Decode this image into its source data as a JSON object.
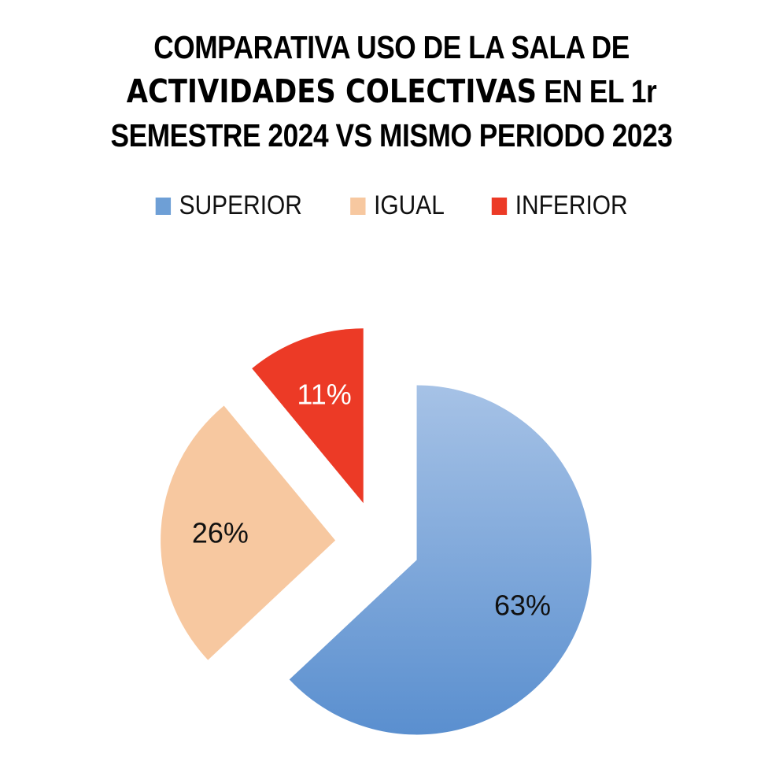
{
  "title": {
    "part1": "COMPARATIVA USO DE LA SALA DE ",
    "part2": "ACTIVIDADES COLECTIVAS",
    "part3": " EN EL 1r SEMESTRE 2024 VS MISMO PERIODO 2023"
  },
  "chart_data": {
    "type": "pie",
    "title": "COMPARATIVA USO DE LA SALA DE ACTIVIDADES COLECTIVAS EN EL 1r SEMESTRE 2024 VS MISMO PERIODO 2023",
    "legend_position": "top",
    "exploded": true,
    "slices": [
      {
        "name": "SUPERIOR",
        "value": 63,
        "label": "63%",
        "color": "#6e9fd6",
        "label_color": "#111111"
      },
      {
        "name": "IGUAL",
        "value": 26,
        "label": "26%",
        "color": "#f7c8a0",
        "label_color": "#111111"
      },
      {
        "name": "INFERIOR",
        "value": 11,
        "label": "11%",
        "color": "#ec3a26",
        "label_color": "#ffffff"
      }
    ]
  }
}
